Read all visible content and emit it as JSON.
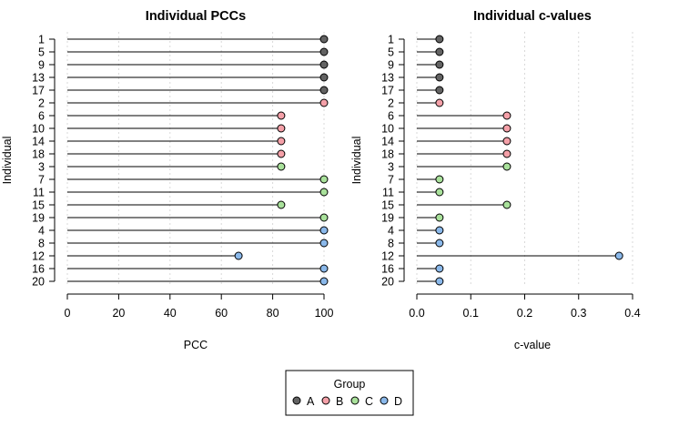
{
  "chart_data": [
    {
      "type": "lollipop",
      "title": "Individual PCCs",
      "xlabel": "PCC",
      "ylabel": "Individual",
      "xlim": [
        0,
        100
      ],
      "xticks": [
        0,
        20,
        40,
        60,
        80,
        100
      ],
      "grid": "vertical-dotted",
      "categories": [
        "1",
        "5",
        "9",
        "13",
        "17",
        "2",
        "6",
        "10",
        "14",
        "18",
        "3",
        "7",
        "11",
        "15",
        "19",
        "4",
        "8",
        "12",
        "16",
        "20"
      ],
      "values": [
        100,
        100,
        100,
        100,
        100,
        100,
        83.3,
        83.3,
        83.3,
        83.3,
        83.3,
        100,
        100,
        83.3,
        100,
        100,
        100,
        66.7,
        100,
        100
      ],
      "groups": [
        "A",
        "A",
        "A",
        "A",
        "A",
        "B",
        "B",
        "B",
        "B",
        "B",
        "C",
        "C",
        "C",
        "C",
        "C",
        "D",
        "D",
        "D",
        "D",
        "D"
      ]
    },
    {
      "type": "lollipop",
      "title": "Individual c-values",
      "xlabel": "c-value",
      "ylabel": "Individual",
      "xlim": [
        0,
        0.4
      ],
      "xticks": [
        "0.0",
        "0.1",
        "0.2",
        "0.3",
        "0.4"
      ],
      "grid": "vertical-dotted",
      "categories": [
        "1",
        "5",
        "9",
        "13",
        "17",
        "2",
        "6",
        "10",
        "14",
        "18",
        "3",
        "7",
        "11",
        "15",
        "19",
        "4",
        "8",
        "12",
        "16",
        "20"
      ],
      "values": [
        0.042,
        0.042,
        0.042,
        0.042,
        0.042,
        0.042,
        0.167,
        0.167,
        0.167,
        0.167,
        0.167,
        0.042,
        0.042,
        0.167,
        0.042,
        0.042,
        0.042,
        0.375,
        0.042,
        0.042
      ],
      "groups": [
        "A",
        "A",
        "A",
        "A",
        "A",
        "B",
        "B",
        "B",
        "B",
        "B",
        "C",
        "C",
        "C",
        "C",
        "C",
        "D",
        "D",
        "D",
        "D",
        "D"
      ]
    }
  ],
  "legend": {
    "title": "Group",
    "placement": "bottom-center",
    "items": [
      {
        "label": "A",
        "color": "#636363"
      },
      {
        "label": "B",
        "color": "#f4a0a8"
      },
      {
        "label": "C",
        "color": "#a9e19b"
      },
      {
        "label": "D",
        "color": "#8ab8ea"
      }
    ]
  }
}
